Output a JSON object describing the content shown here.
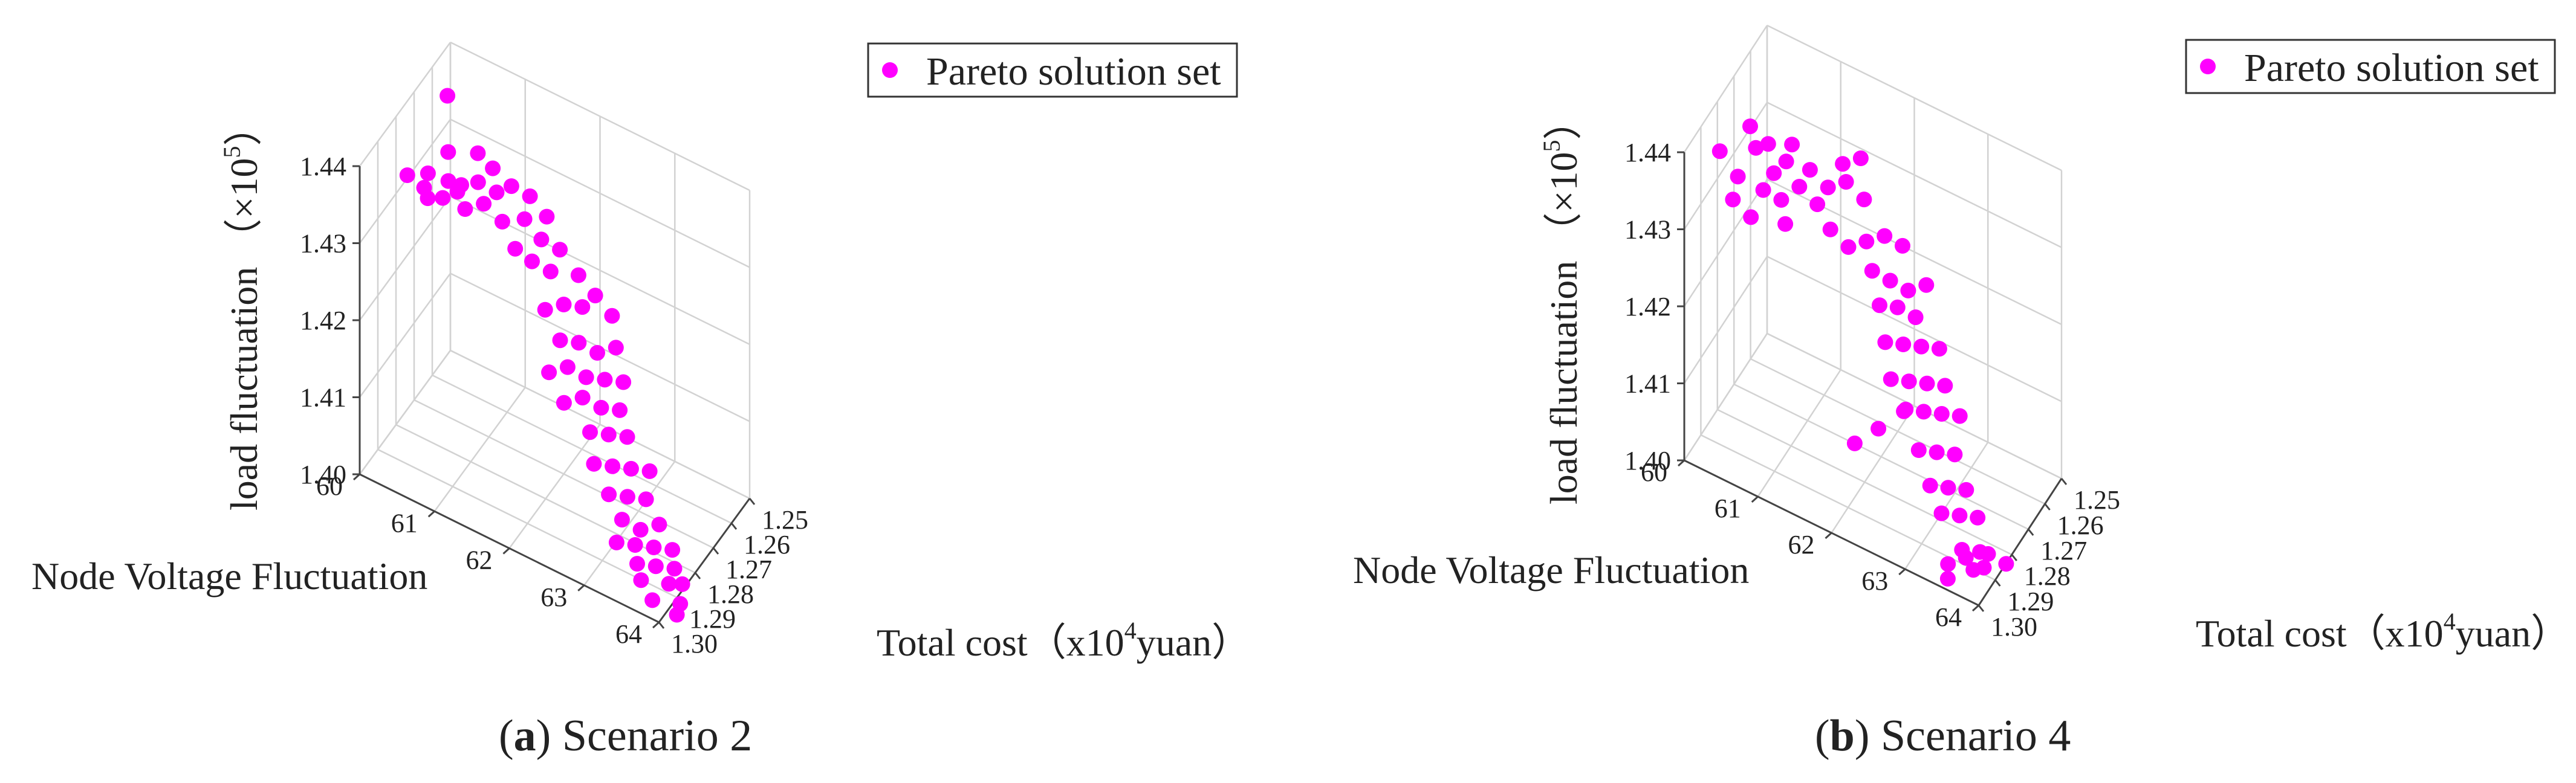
{
  "charts": [
    {
      "legend_label": "Pareto solution set",
      "xlabel": "Node Voltage Fluctuation",
      "ylabel_main": "Total cost（x10",
      "ylabel_exp": "4",
      "ylabel_tail": "yuan）",
      "zlabel_main": "load fluctuation （×10",
      "zlabel_exp": "5",
      "zlabel_tail": "）",
      "caption_letter": "a",
      "caption_text": " Scenario 2"
    },
    {
      "legend_label": "Pareto solution set",
      "xlabel": "Node Voltage Fluctuation",
      "ylabel_main": "Total cost（x10",
      "ylabel_exp": "4",
      "ylabel_tail": "yuan）",
      "zlabel_main": "load fluctuation （×10",
      "zlabel_exp": "5",
      "zlabel_tail": "）",
      "caption_letter": "b",
      "caption_text": " Scenario 4"
    }
  ],
  "chart_data": [
    {
      "type": "scatter",
      "title": "",
      "series": [
        {
          "name": "Pareto solution set",
          "color": "#ff00ff",
          "points": [
            [
              60.3,
              1.264,
              1.439
            ],
            [
              60.2,
              1.282,
              1.434
            ],
            [
              60.4,
              1.281,
              1.433
            ],
            [
              60.6,
              1.279,
              1.432
            ],
            [
              60.8,
              1.277,
              1.434
            ],
            [
              61.0,
              1.276,
              1.435
            ],
            [
              60.5,
              1.283,
              1.436
            ],
            [
              60.7,
              1.28,
              1.435
            ],
            [
              60.9,
              1.279,
              1.432
            ],
            [
              61.1,
              1.277,
              1.433
            ],
            [
              61.3,
              1.275,
              1.431
            ],
            [
              61.2,
              1.274,
              1.434
            ],
            [
              60.6,
              1.276,
              1.437
            ],
            [
              60.9,
              1.272,
              1.437
            ],
            [
              61.1,
              1.272,
              1.436
            ],
            [
              60.4,
              1.279,
              1.431
            ],
            [
              60.7,
              1.275,
              1.432
            ],
            [
              61.3,
              1.27,
              1.434
            ],
            [
              61.5,
              1.268,
              1.433
            ],
            [
              61.7,
              1.267,
              1.431
            ],
            [
              61.5,
              1.271,
              1.431
            ],
            [
              61.7,
              1.27,
              1.429
            ],
            [
              61.9,
              1.268,
              1.428
            ],
            [
              61.4,
              1.272,
              1.427
            ],
            [
              61.6,
              1.271,
              1.426
            ],
            [
              61.8,
              1.269,
              1.425
            ],
            [
              61.8,
              1.272,
              1.421
            ],
            [
              62.0,
              1.27,
              1.422
            ],
            [
              62.2,
              1.268,
              1.422
            ],
            [
              62.1,
              1.266,
              1.425
            ],
            [
              62.3,
              1.265,
              1.423
            ],
            [
              62.5,
              1.264,
              1.421
            ],
            [
              62.0,
              1.272,
              1.418
            ],
            [
              62.2,
              1.27,
              1.418
            ],
            [
              62.4,
              1.268,
              1.417
            ],
            [
              62.6,
              1.266,
              1.418
            ],
            [
              61.9,
              1.274,
              1.414
            ],
            [
              62.1,
              1.272,
              1.415
            ],
            [
              62.3,
              1.27,
              1.414
            ],
            [
              62.5,
              1.268,
              1.414
            ],
            [
              62.7,
              1.266,
              1.414
            ],
            [
              62.1,
              1.274,
              1.411
            ],
            [
              62.3,
              1.272,
              1.412
            ],
            [
              62.5,
              1.27,
              1.411
            ],
            [
              62.7,
              1.268,
              1.411
            ],
            [
              62.4,
              1.272,
              1.408
            ],
            [
              62.6,
              1.27,
              1.408
            ],
            [
              62.8,
              1.268,
              1.408
            ],
            [
              62.5,
              1.274,
              1.405
            ],
            [
              62.7,
              1.272,
              1.405
            ],
            [
              62.9,
              1.27,
              1.405
            ],
            [
              63.1,
              1.268,
              1.405
            ],
            [
              62.7,
              1.274,
              1.402
            ],
            [
              62.9,
              1.272,
              1.402
            ],
            [
              63.1,
              1.27,
              1.402
            ],
            [
              62.9,
              1.275,
              1.4
            ],
            [
              63.1,
              1.273,
              1.399
            ],
            [
              63.3,
              1.271,
              1.4
            ],
            [
              62.9,
              1.278,
              1.398
            ],
            [
              63.1,
              1.276,
              1.398
            ],
            [
              63.3,
              1.274,
              1.398
            ],
            [
              63.5,
              1.272,
              1.398
            ],
            [
              63.2,
              1.279,
              1.397
            ],
            [
              63.4,
              1.277,
              1.397
            ],
            [
              63.6,
              1.275,
              1.397
            ],
            [
              63.3,
              1.281,
              1.396
            ],
            [
              63.6,
              1.278,
              1.396
            ],
            [
              63.5,
              1.283,
              1.395
            ],
            [
              63.8,
              1.28,
              1.395
            ],
            [
              63.9,
              1.286,
              1.396
            ],
            [
              63.9,
              1.283,
              1.399
            ]
          ]
        }
      ],
      "xlabel": "Node Voltage Fluctuation",
      "ylabel": "Total cost（x10^4yuan）",
      "zlabel": "load fluctuation （×10^5）",
      "xlim": [
        60,
        64
      ],
      "ylim": [
        1.25,
        1.3
      ],
      "zlim": [
        1.4,
        1.44
      ],
      "xticks": [
        "60",
        "61",
        "62",
        "63",
        "64"
      ],
      "yticks": [
        "1.25",
        "1.26",
        "1.27",
        "1.28",
        "1.29",
        "1.30"
      ],
      "zticks": [
        "1.40",
        "1.41",
        "1.42",
        "1.43",
        "1.44"
      ],
      "grid": true,
      "legend": "top-right"
    },
    {
      "type": "scatter",
      "title": "",
      "series": [
        {
          "name": "Pareto solution set",
          "color": "#ff00ff",
          "points": [
            [
              60.1,
              1.283,
              1.435
            ],
            [
              60.3,
              1.281,
              1.432
            ],
            [
              60.5,
              1.279,
              1.436
            ],
            [
              60.7,
              1.277,
              1.433
            ],
            [
              60.9,
              1.275,
              1.437
            ],
            [
              61.1,
              1.273,
              1.434
            ],
            [
              60.4,
              1.278,
              1.438
            ],
            [
              60.6,
              1.276,
              1.436
            ],
            [
              60.8,
              1.274,
              1.434
            ],
            [
              60.6,
              1.279,
              1.431
            ],
            [
              60.8,
              1.277,
              1.43
            ],
            [
              61.0,
              1.275,
              1.432
            ],
            [
              61.2,
              1.273,
              1.43
            ],
            [
              60.3,
              1.284,
              1.43
            ],
            [
              60.5,
              1.282,
              1.428
            ],
            [
              60.9,
              1.279,
              1.428
            ],
            [
              61.3,
              1.271,
              1.432
            ],
            [
              61.5,
              1.269,
              1.433
            ],
            [
              61.7,
              1.267,
              1.431
            ],
            [
              61.5,
              1.271,
              1.436
            ],
            [
              61.7,
              1.269,
              1.437
            ],
            [
              61.4,
              1.274,
              1.428
            ],
            [
              61.6,
              1.272,
              1.426
            ],
            [
              61.8,
              1.27,
              1.427
            ],
            [
              62.0,
              1.268,
              1.428
            ],
            [
              62.2,
              1.266,
              1.427
            ],
            [
              61.9,
              1.271,
              1.424
            ],
            [
              62.1,
              1.269,
              1.423
            ],
            [
              62.3,
              1.267,
              1.422
            ],
            [
              62.5,
              1.265,
              1.423
            ],
            [
              62.0,
              1.271,
              1.42
            ],
            [
              62.2,
              1.269,
              1.42
            ],
            [
              62.4,
              1.267,
              1.419
            ],
            [
              62.1,
              1.272,
              1.416
            ],
            [
              62.3,
              1.27,
              1.416
            ],
            [
              62.5,
              1.268,
              1.416
            ],
            [
              62.7,
              1.266,
              1.416
            ],
            [
              62.2,
              1.273,
              1.412
            ],
            [
              62.4,
              1.271,
              1.412
            ],
            [
              62.6,
              1.269,
              1.412
            ],
            [
              62.8,
              1.267,
              1.412
            ],
            [
              62.4,
              1.273,
              1.409
            ],
            [
              62.6,
              1.271,
              1.409
            ],
            [
              62.8,
              1.269,
              1.409
            ],
            [
              63.0,
              1.267,
              1.409
            ],
            [
              62.6,
              1.274,
              1.405
            ],
            [
              62.8,
              1.272,
              1.405
            ],
            [
              63.0,
              1.27,
              1.405
            ],
            [
              62.8,
              1.276,
              1.402
            ],
            [
              63.0,
              1.274,
              1.402
            ],
            [
              63.2,
              1.272,
              1.402
            ],
            [
              63.0,
              1.278,
              1.4
            ],
            [
              63.2,
              1.276,
              1.4
            ],
            [
              63.4,
              1.274,
              1.4
            ],
            [
              63.3,
              1.279,
              1.397
            ],
            [
              63.5,
              1.277,
              1.397
            ],
            [
              63.2,
              1.283,
              1.396
            ],
            [
              63.5,
              1.281,
              1.396
            ],
            [
              63.7,
              1.281,
              1.399
            ],
            [
              63.9,
              1.279,
              1.398
            ],
            [
              62.0,
              1.286,
              1.407
            ],
            [
              62.3,
              1.285,
              1.41
            ],
            [
              62.6,
              1.283,
              1.413
            ],
            [
              63.6,
              1.29,
              1.401
            ],
            [
              63.8,
              1.288,
              1.4
            ],
            [
              63.4,
              1.292,
              1.398
            ]
          ]
        }
      ],
      "xlabel": "Node Voltage Fluctuation",
      "ylabel": "Total cost（x10^4yuan）",
      "zlabel": "load fluctuation （×10^5）",
      "xlim": [
        60,
        64
      ],
      "ylim": [
        1.25,
        1.3
      ],
      "zlim": [
        1.4,
        1.44
      ],
      "xticks": [
        "60",
        "61",
        "62",
        "63",
        "64"
      ],
      "yticks": [
        "1.25",
        "1.26",
        "1.27",
        "1.28",
        "1.29",
        "1.30"
      ],
      "zticks": [
        "1.40",
        "1.41",
        "1.42",
        "1.43",
        "1.44"
      ],
      "grid": true,
      "legend": "top-right"
    }
  ]
}
